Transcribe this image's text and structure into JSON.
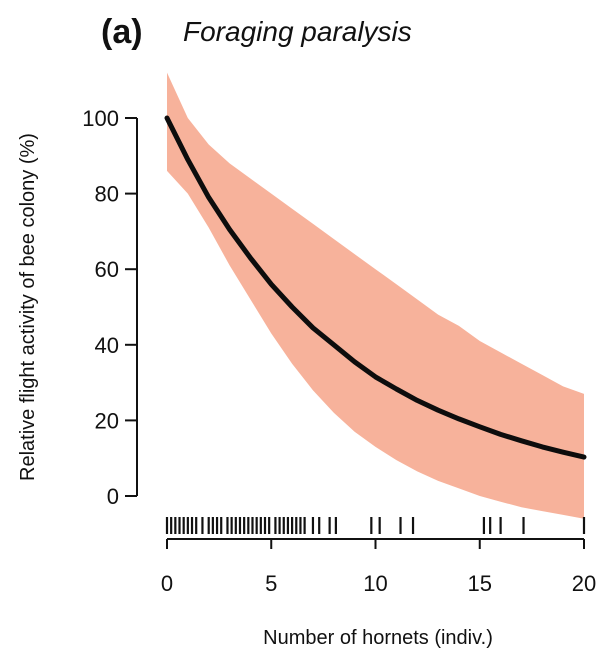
{
  "panel_label": "(a)",
  "title": "Foraging paralysis",
  "chart_data": {
    "type": "line",
    "xlabel": "Number of hornets (indiv.)",
    "ylabel": "Relative flight activity of bee colony (%)",
    "xlim": [
      0,
      20
    ],
    "ylim": [
      0,
      100
    ],
    "xticks": [
      0,
      5,
      10,
      15,
      20
    ],
    "yticks": [
      0,
      20,
      40,
      60,
      80,
      100
    ],
    "grid": false,
    "legend": "none",
    "colors": {
      "line": "#0d0d0d",
      "band": "#f7b29b",
      "axis": "#111111"
    },
    "series": [
      {
        "x": [
          0,
          1,
          2,
          3,
          4,
          5,
          6,
          7,
          8,
          9,
          10,
          11,
          12,
          13,
          14,
          15,
          16,
          17,
          18,
          19,
          20
        ],
        "values": [
          100,
          89,
          79,
          70.5,
          63,
          56,
          50,
          44.5,
          40,
          35.5,
          31.5,
          28.3,
          25.3,
          22.7,
          20.4,
          18.3,
          16.3,
          14.6,
          13,
          11.6,
          10.3
        ]
      }
    ],
    "confidence_band": {
      "x": [
        0,
        1,
        2,
        3,
        4,
        5,
        6,
        7,
        8,
        9,
        10,
        11,
        12,
        13,
        14,
        15,
        16,
        17,
        18,
        19,
        20
      ],
      "upper": [
        112,
        100,
        93,
        88,
        84,
        80,
        76,
        72,
        68,
        64,
        60,
        56,
        52,
        48,
        45,
        41,
        38,
        35,
        32,
        29,
        27
      ],
      "lower": [
        86,
        80,
        71,
        61,
        52,
        43,
        35,
        28,
        22,
        17,
        13,
        9.5,
        6.5,
        4,
        2,
        0,
        -1.5,
        -3,
        -4,
        -5,
        -6
      ]
    },
    "rug_x": [
      0,
      0.2,
      0.4,
      0.6,
      0.8,
      1,
      1.2,
      1.4,
      1.7,
      2,
      2.2,
      2.4,
      2.6,
      2.9,
      3.1,
      3.3,
      3.5,
      3.7,
      3.9,
      4.1,
      4.3,
      4.5,
      4.7,
      4.9,
      5.2,
      5.4,
      5.6,
      5.8,
      6,
      6.2,
      6.4,
      6.6,
      7,
      7.3,
      7.8,
      8.1,
      9.8,
      10.2,
      11.2,
      11.8,
      15.2,
      15.5,
      16,
      17.1,
      20
    ]
  }
}
